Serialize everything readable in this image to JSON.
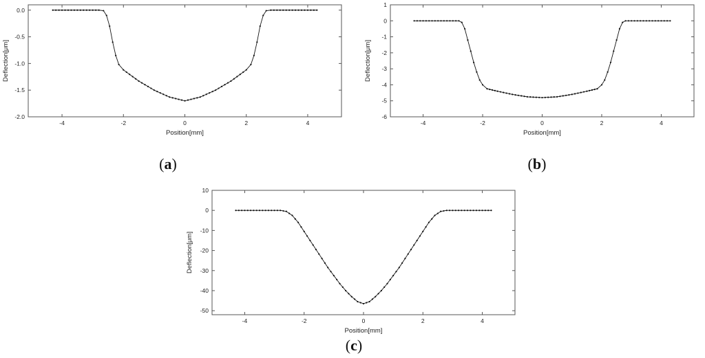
{
  "panels": [
    {
      "caption_letter": "a"
    },
    {
      "caption_letter": "b"
    },
    {
      "caption_letter": "c"
    }
  ],
  "chart_data": [
    {
      "type": "line",
      "xlabel": "Position[mm]",
      "ylabel": "Deflection[μm]",
      "xlim": [
        -5.1,
        5.1
      ],
      "ylim": [
        -2.0,
        0.1
      ],
      "xticks": [
        -4,
        -2,
        0,
        2,
        4
      ],
      "yticks": [
        0.0,
        -0.5,
        -1.0,
        -1.5,
        -2.0
      ],
      "ytick_labels": [
        "0.0",
        "-0.5",
        "-1.0",
        "-1.5",
        "-2.0"
      ],
      "grid": false,
      "series": [
        {
          "markers": true,
          "points": [
            [
              -4.3,
              0.0
            ],
            [
              -2.8,
              0.0
            ],
            [
              -2.65,
              -0.01
            ],
            [
              -2.55,
              -0.1
            ],
            [
              -2.45,
              -0.3
            ],
            [
              -2.35,
              -0.6
            ],
            [
              -2.25,
              -0.85
            ],
            [
              -2.15,
              -1.02
            ],
            [
              -2.0,
              -1.12
            ],
            [
              -1.5,
              -1.33
            ],
            [
              -1.0,
              -1.5
            ],
            [
              -0.5,
              -1.63
            ],
            [
              0.0,
              -1.7
            ],
            [
              0.5,
              -1.63
            ],
            [
              1.0,
              -1.5
            ],
            [
              1.5,
              -1.33
            ],
            [
              2.0,
              -1.12
            ],
            [
              2.15,
              -1.02
            ],
            [
              2.25,
              -0.85
            ],
            [
              2.35,
              -0.6
            ],
            [
              2.45,
              -0.3
            ],
            [
              2.55,
              -0.1
            ],
            [
              2.65,
              -0.01
            ],
            [
              2.8,
              0.0
            ],
            [
              4.3,
              0.0
            ]
          ]
        }
      ]
    },
    {
      "type": "line",
      "xlabel": "Position[mm]",
      "ylabel": "Deflection[μm]",
      "xlim": [
        -5.1,
        5.1
      ],
      "ylim": [
        -6,
        1
      ],
      "xticks": [
        -4,
        -2,
        0,
        2,
        4
      ],
      "yticks": [
        1,
        0,
        -1,
        -2,
        -3,
        -4,
        -5,
        -6
      ],
      "ytick_labels": [
        "1",
        "0",
        "-1",
        "-2",
        "-3",
        "-4",
        "-5",
        "-6"
      ],
      "grid": false,
      "series": [
        {
          "markers": true,
          "points": [
            [
              -4.3,
              0.0
            ],
            [
              -2.8,
              0.0
            ],
            [
              -2.7,
              -0.1
            ],
            [
              -2.6,
              -0.5
            ],
            [
              -2.5,
              -1.2
            ],
            [
              -2.4,
              -1.9
            ],
            [
              -2.3,
              -2.6
            ],
            [
              -2.2,
              -3.2
            ],
            [
              -2.1,
              -3.7
            ],
            [
              -2.0,
              -4.0
            ],
            [
              -1.85,
              -4.25
            ],
            [
              -1.5,
              -4.4
            ],
            [
              -1.0,
              -4.6
            ],
            [
              -0.5,
              -4.75
            ],
            [
              0.0,
              -4.8
            ],
            [
              0.5,
              -4.75
            ],
            [
              1.0,
              -4.6
            ],
            [
              1.5,
              -4.4
            ],
            [
              1.85,
              -4.25
            ],
            [
              2.0,
              -4.0
            ],
            [
              2.1,
              -3.7
            ],
            [
              2.2,
              -3.2
            ],
            [
              2.3,
              -2.6
            ],
            [
              2.4,
              -1.9
            ],
            [
              2.5,
              -1.2
            ],
            [
              2.6,
              -0.5
            ],
            [
              2.7,
              -0.1
            ],
            [
              2.8,
              0.0
            ],
            [
              4.3,
              0.0
            ]
          ]
        }
      ]
    },
    {
      "type": "line",
      "xlabel": "Position[mm]",
      "ylabel": "Deflection[μm]",
      "xlim": [
        -5.1,
        5.1
      ],
      "ylim": [
        -52,
        10
      ],
      "xticks": [
        -4,
        -2,
        0,
        2,
        4
      ],
      "yticks": [
        10,
        0,
        -10,
        -20,
        -30,
        -40,
        -50
      ],
      "ytick_labels": [
        "10",
        "0",
        "-10",
        "-20",
        "-30",
        "-40",
        "-50"
      ],
      "grid": false,
      "series": [
        {
          "markers": true,
          "points": [
            [
              -4.3,
              0.0
            ],
            [
              -2.8,
              0.0
            ],
            [
              -2.6,
              -0.5
            ],
            [
              -2.4,
              -2.5
            ],
            [
              -2.2,
              -6.0
            ],
            [
              -2.0,
              -10.5
            ],
            [
              -1.8,
              -15.0
            ],
            [
              -1.6,
              -19.5
            ],
            [
              -1.4,
              -24.0
            ],
            [
              -1.2,
              -28.5
            ],
            [
              -1.0,
              -32.5
            ],
            [
              -0.8,
              -36.5
            ],
            [
              -0.6,
              -40.0
            ],
            [
              -0.4,
              -43.0
            ],
            [
              -0.2,
              -45.5
            ],
            [
              0.0,
              -46.5
            ],
            [
              0.2,
              -45.5
            ],
            [
              0.4,
              -43.0
            ],
            [
              0.6,
              -40.0
            ],
            [
              0.8,
              -36.5
            ],
            [
              1.0,
              -32.5
            ],
            [
              1.2,
              -28.5
            ],
            [
              1.4,
              -24.0
            ],
            [
              1.6,
              -19.5
            ],
            [
              1.8,
              -15.0
            ],
            [
              2.0,
              -10.5
            ],
            [
              2.2,
              -6.0
            ],
            [
              2.4,
              -2.5
            ],
            [
              2.6,
              -0.5
            ],
            [
              2.8,
              0.0
            ],
            [
              4.3,
              0.0
            ]
          ]
        }
      ]
    }
  ]
}
